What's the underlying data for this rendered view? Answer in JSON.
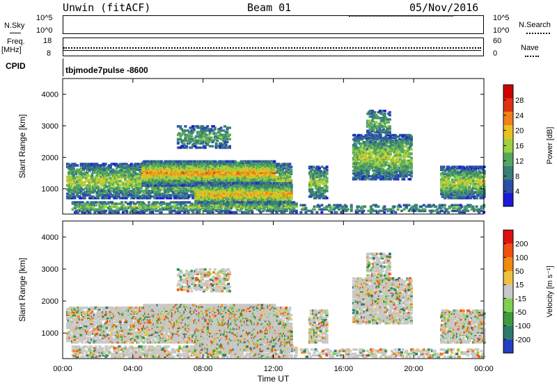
{
  "header": {
    "title": "Unwin (fitACF)",
    "beam": "Beam 01",
    "date": "05/Nov/2016"
  },
  "top_panels": {
    "nsky_label": "N.Sky",
    "nsky_ticks": [
      "10^5",
      "10^0"
    ],
    "nsearch_label": "N.Search",
    "nsearch_ticks": [
      "10^5",
      "10^0"
    ],
    "freq_label": "Freq.",
    "freq_unit": "[MHz]",
    "freq_ticks": [
      "18",
      "8"
    ],
    "nave_label": "Nave",
    "nave_ticks": [
      "60",
      "0"
    ],
    "cpid_label": "CPID",
    "cpid_value": "tbjmode7pulse -8600"
  },
  "chart_data": [
    {
      "type": "heatmap",
      "title": "",
      "ylabel": "Slant Range [km]",
      "xlabel": "Time UT",
      "x_ticks": [
        "00:00",
        "04:00",
        "08:00",
        "12:00",
        "16:00",
        "20:00",
        "00:00"
      ],
      "xlim_hours": [
        0,
        24
      ],
      "y_ticks": [
        1000,
        2000,
        3000,
        4000
      ],
      "ylim": [
        200,
        4500
      ],
      "colorbar": {
        "label": "Power [dB]",
        "ticks": [
          4,
          8,
          12,
          16,
          20,
          24,
          28
        ],
        "range": [
          0,
          32
        ],
        "colors": [
          "#1a1ad8",
          "#2b4fa8",
          "#3a7f78",
          "#55a85a",
          "#9fd040",
          "#e8c020",
          "#f08018",
          "#e03010",
          "#d00000"
        ]
      }
    },
    {
      "type": "heatmap",
      "title": "",
      "ylabel": "Slant Range [km]",
      "xlabel": "Time UT",
      "x_ticks": [
        "00:00",
        "04:00",
        "08:00",
        "12:00",
        "16:00",
        "20:00",
        "00:00"
      ],
      "xlim_hours": [
        0,
        24
      ],
      "y_ticks": [
        1000,
        2000,
        3000,
        4000
      ],
      "ylim": [
        200,
        4500
      ],
      "colorbar": {
        "label": "Velocity [m s⁻¹]",
        "ticks": [
          "200",
          "100",
          "50",
          "15",
          "-15",
          "-50",
          "-100",
          "-200"
        ],
        "colors": [
          "#2040c0",
          "#2e7a6a",
          "#3f9a3f",
          "#7fd050",
          "#c8c8c8",
          "#f0c040",
          "#f08a10",
          "#f05010",
          "#e01010"
        ]
      }
    }
  ]
}
